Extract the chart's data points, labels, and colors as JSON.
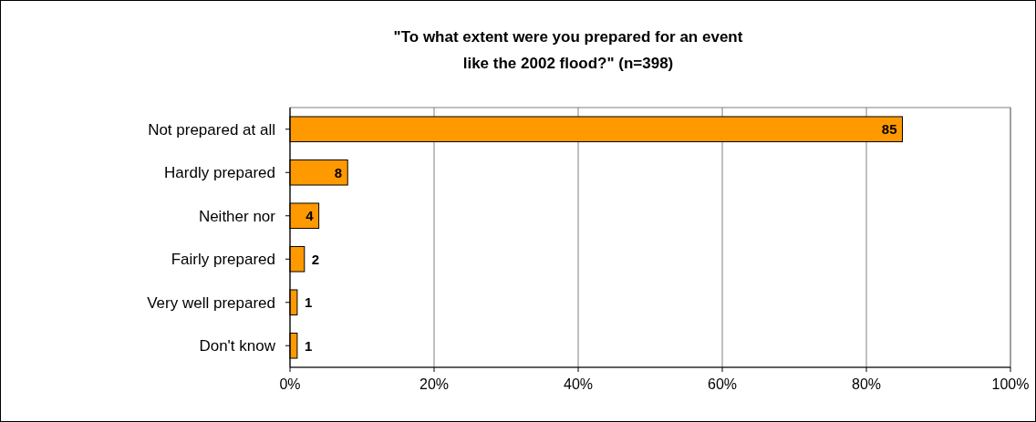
{
  "chart_data": {
    "type": "bar",
    "orientation": "horizontal",
    "title": "\"To what extent were you prepared for an event\nlike the 2002 flood?\" (n=398)",
    "categories": [
      "Not prepared at all",
      "Hardly prepared",
      "Neither nor",
      "Fairly prepared",
      "Very well prepared",
      "Don't know"
    ],
    "values": [
      85,
      8,
      4,
      2,
      1,
      1
    ],
    "color": "#ff9900",
    "xlim": [
      0,
      100
    ],
    "xticks": [
      {
        "value": 0,
        "label": "0%"
      },
      {
        "value": 20,
        "label": "20%"
      },
      {
        "value": 40,
        "label": "40%"
      },
      {
        "value": 60,
        "label": "60%"
      },
      {
        "value": 80,
        "label": "80%"
      },
      {
        "value": 100,
        "label": "100%"
      }
    ],
    "grid": "x",
    "data_labels": true
  }
}
